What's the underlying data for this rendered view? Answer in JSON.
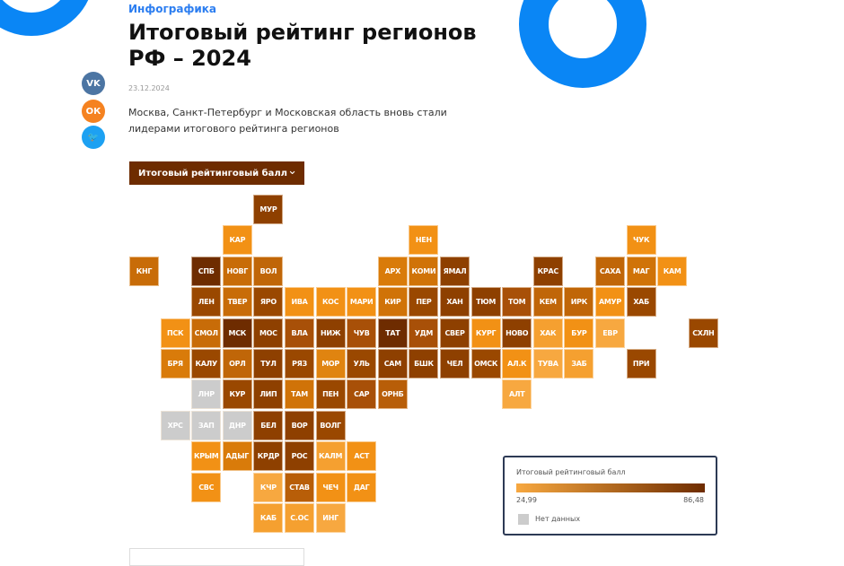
{
  "header": {
    "category": "Инфографика",
    "title": "Итоговый рейтинг регионов РФ – 2024",
    "date": "23.12.2024",
    "lead": "Москва, Санкт-Петербург и Московская область вновь стали лидерами итогового рейтинга регионов"
  },
  "social": [
    {
      "label": "vk",
      "icon": "vk-icon",
      "color": "#4c75a3"
    },
    {
      "label": "ok",
      "icon": "odnoklassniki-icon",
      "color": "#f58220"
    },
    {
      "label": "tw",
      "icon": "twitter-icon",
      "color": "#1da1f2"
    }
  ],
  "dropdown": {
    "label": "Итоговый рейтинговый балл",
    "icon": "chevron-down-icon"
  },
  "legend": {
    "title": "Итоговый рейтинговый балл",
    "min": "24,99",
    "max": "86,48",
    "no_data": "Нет данных",
    "min_color": "#f7a840",
    "max_color": "#6e2c00",
    "no_data_color": "#cccccc"
  },
  "accent": "#0a86f5",
  "tiles": [
    [
      "МУР",
      0,
      4,
      "#8e4000"
    ],
    [
      "КАР",
      1,
      3,
      "#f29115"
    ],
    [
      "НЕН",
      1,
      9,
      "#f29115"
    ],
    [
      "ЧУК",
      1,
      16,
      "#f29115"
    ],
    [
      "КНГ",
      2,
      0,
      "#c86c08"
    ],
    [
      "СПБ",
      2,
      2,
      "#6e2c00"
    ],
    [
      "НОВГ",
      2,
      3,
      "#c86c08"
    ],
    [
      "ВОЛ",
      2,
      4,
      "#c06608"
    ],
    [
      "АРХ",
      2,
      8,
      "#d97b0a"
    ],
    [
      "КОМИ",
      2,
      9,
      "#d07308"
    ],
    [
      "ЯМАЛ",
      2,
      10,
      "#8e4000"
    ],
    [
      "КРАС",
      2,
      13,
      "#8e4000"
    ],
    [
      "САХА",
      2,
      15,
      "#c06608"
    ],
    [
      "МАГ",
      2,
      16,
      "#d07308"
    ],
    [
      "КАМ",
      2,
      17,
      "#f29115"
    ],
    [
      "ЛЕН",
      3,
      2,
      "#9a4800"
    ],
    [
      "ТВЕР",
      3,
      3,
      "#c86c08"
    ],
    [
      "ЯРО",
      3,
      4,
      "#9a4800"
    ],
    [
      "ИВА",
      3,
      5,
      "#f29115"
    ],
    [
      "КОС",
      3,
      6,
      "#f29115"
    ],
    [
      "МАРИ",
      3,
      7,
      "#f29115"
    ],
    [
      "КИР",
      3,
      8,
      "#d07308"
    ],
    [
      "ПЕР",
      3,
      9,
      "#9a4800"
    ],
    [
      "ХАН",
      3,
      10,
      "#8e4000"
    ],
    [
      "ТЮМ",
      3,
      11,
      "#8e4000"
    ],
    [
      "ТОМ",
      3,
      12,
      "#a85008"
    ],
    [
      "КЕМ",
      3,
      13,
      "#c06608"
    ],
    [
      "ИРК",
      3,
      14,
      "#c06608"
    ],
    [
      "АМУР",
      3,
      15,
      "#f29115"
    ],
    [
      "ХАБ",
      3,
      16,
      "#9a4800"
    ],
    [
      "ПСК",
      4,
      1,
      "#f29115"
    ],
    [
      "СМОЛ",
      4,
      2,
      "#c86c08"
    ],
    [
      "МСК",
      4,
      3,
      "#6e2c00"
    ],
    [
      "МОС",
      4,
      4,
      "#8e4000"
    ],
    [
      "ВЛА",
      4,
      5,
      "#a85008"
    ],
    [
      "НИЖ",
      4,
      6,
      "#8e4000"
    ],
    [
      "ЧУВ",
      4,
      7,
      "#a85008"
    ],
    [
      "ТАТ",
      4,
      8,
      "#6e2c00"
    ],
    [
      "УДМ",
      4,
      9,
      "#a85008"
    ],
    [
      "СВЕР",
      4,
      10,
      "#8e4000"
    ],
    [
      "КУРГ",
      4,
      11,
      "#f29115"
    ],
    [
      "НОВО",
      4,
      12,
      "#8e4000"
    ],
    [
      "ХАК",
      4,
      13,
      "#f5a030"
    ],
    [
      "БУР",
      4,
      14,
      "#f29115"
    ],
    [
      "ЕВР",
      4,
      15,
      "#f7a840"
    ],
    [
      "СХЛН",
      4,
      18,
      "#9a4800"
    ],
    [
      "БРЯ",
      5,
      1,
      "#d97b0a"
    ],
    [
      "КАЛУ",
      5,
      2,
      "#9a4800"
    ],
    [
      "ОРЛ",
      5,
      3,
      "#c06608"
    ],
    [
      "ТУЛ",
      5,
      4,
      "#8e4000"
    ],
    [
      "РЯЗ",
      5,
      5,
      "#9a4800"
    ],
    [
      "МОР",
      5,
      6,
      "#e08410"
    ],
    [
      "УЛЬ",
      5,
      7,
      "#9a4800"
    ],
    [
      "САМ",
      5,
      8,
      "#8e4000"
    ],
    [
      "БШК",
      5,
      9,
      "#8e4000"
    ],
    [
      "ЧЕЛ",
      5,
      10,
      "#8e4000"
    ],
    [
      "ОМСК",
      5,
      11,
      "#9a4800"
    ],
    [
      "АЛ.К",
      5,
      12,
      "#f29115"
    ],
    [
      "ТУВА",
      5,
      13,
      "#f7a840"
    ],
    [
      "ЗАБ",
      5,
      14,
      "#f5a030"
    ],
    [
      "ПРИ",
      5,
      16,
      "#9a4800"
    ],
    [
      "ЛНР",
      6,
      2,
      "#cccccc"
    ],
    [
      "КУР",
      6,
      3,
      "#9a4800"
    ],
    [
      "ЛИП",
      6,
      4,
      "#8e4000"
    ],
    [
      "ТАМ",
      6,
      5,
      "#d07308"
    ],
    [
      "ПЕН",
      6,
      6,
      "#9a4800"
    ],
    [
      "САР",
      6,
      7,
      "#a85008"
    ],
    [
      "ОРНБ",
      6,
      8,
      "#b85e08"
    ],
    [
      "АЛТ",
      6,
      12,
      "#f7a840"
    ],
    [
      "ХРС",
      7,
      1,
      "#cccccc"
    ],
    [
      "ЗАП",
      7,
      2,
      "#cccccc"
    ],
    [
      "ДНР",
      7,
      3,
      "#cccccc"
    ],
    [
      "БЕЛ",
      7,
      4,
      "#8e4000"
    ],
    [
      "ВОР",
      7,
      5,
      "#8e4000"
    ],
    [
      "ВОЛГ",
      7,
      6,
      "#9a4800"
    ],
    [
      "КРЫМ",
      8,
      2,
      "#f29115"
    ],
    [
      "АДЫГ",
      8,
      3,
      "#d97b0a"
    ],
    [
      "КРДР",
      8,
      4,
      "#8e4000"
    ],
    [
      "РОС",
      8,
      5,
      "#8e4000"
    ],
    [
      "КАЛМ",
      8,
      6,
      "#f5a030"
    ],
    [
      "АСТ",
      8,
      7,
      "#f29115"
    ],
    [
      "СВС",
      9,
      2,
      "#f29115"
    ],
    [
      "КЧР",
      9,
      4,
      "#f7a840"
    ],
    [
      "СТАВ",
      9,
      5,
      "#b85e08"
    ],
    [
      "ЧЕЧ",
      9,
      6,
      "#f29115"
    ],
    [
      "ДАГ",
      9,
      7,
      "#f29115"
    ],
    [
      "КАБ",
      10,
      4,
      "#f5a030"
    ],
    [
      "С.ОС",
      10,
      5,
      "#f5a030"
    ],
    [
      "ИНГ",
      10,
      6,
      "#f7a840"
    ]
  ]
}
